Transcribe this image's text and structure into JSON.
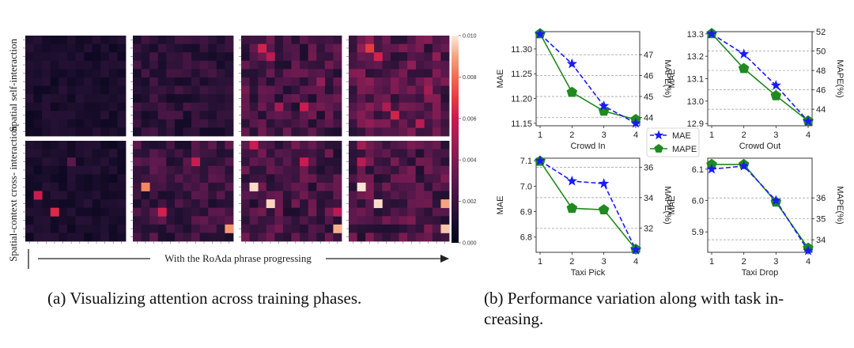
{
  "panel_a": {
    "row_labels": [
      "Spatial self-interaction",
      "Spatial-context cross- interaction"
    ],
    "progress_text": "With the RoAda phrase progressing",
    "colorbar": {
      "ticks": [
        "0.010",
        "0.008",
        "0.006",
        "0.004",
        "0.002",
        "0.000"
      ],
      "min": 0,
      "max": 0.01
    }
  },
  "captions": {
    "a_tag": "(a)",
    "a_text": "Visualizing attention across training phases.",
    "b_tag": "(b)",
    "b_text": "Performance variation along with task increasing.",
    "b_text_line1": "Performance variation along with task in-",
    "b_text_line2": "creasing."
  },
  "legend": {
    "mae": "MAE",
    "mape": "MAPE"
  },
  "colors": {
    "mae": "#1a1aff",
    "mape": "#1f8a1f"
  },
  "chart_data": [
    {
      "id": "crowd-in",
      "type": "line",
      "xlabel": "Crowd In",
      "ylabel": "MAE",
      "y2label": "MAPE(%)",
      "x": [
        1,
        2,
        3,
        4
      ],
      "series": [
        {
          "name": "MAE",
          "axis": "left",
          "values": [
            11.33,
            11.27,
            11.185,
            11.15
          ]
        },
        {
          "name": "MAPE",
          "axis": "right",
          "values": [
            48.0,
            45.2,
            44.3,
            43.9
          ]
        }
      ],
      "ylim": [
        11.145,
        11.335
      ],
      "yticks": [
        "11.15",
        "11.20",
        "11.25",
        "11.30"
      ],
      "y2lim": [
        43.6,
        48.1
      ],
      "y2ticks": [
        "44",
        "45",
        "46",
        "47"
      ]
    },
    {
      "id": "crowd-out",
      "type": "line",
      "xlabel": "Crowd Out",
      "ylabel": "MAE",
      "y2label": "MAPE(%)",
      "x": [
        1,
        2,
        3,
        4
      ],
      "series": [
        {
          "name": "MAE",
          "axis": "left",
          "values": [
            13.3,
            13.21,
            13.07,
            12.91
          ]
        },
        {
          "name": "MAPE",
          "axis": "right",
          "values": [
            51.8,
            48.2,
            45.4,
            42.8
          ]
        }
      ],
      "ylim": [
        12.89,
        13.31
      ],
      "yticks": [
        "12.9",
        "13.0",
        "13.1",
        "13.2",
        "13.3"
      ],
      "y2lim": [
        42.3,
        52.0
      ],
      "y2ticks": [
        "44",
        "46",
        "48",
        "50",
        "52"
      ]
    },
    {
      "id": "taxi-pick",
      "type": "line",
      "xlabel": "Taxi Pick",
      "ylabel": "MAE",
      "y2label": "MAPE(%)",
      "x": [
        1,
        2,
        3,
        4
      ],
      "series": [
        {
          "name": "MAE",
          "axis": "left",
          "values": [
            7.1,
            7.02,
            7.01,
            6.75
          ]
        },
        {
          "name": "MAPE",
          "axis": "right",
          "values": [
            36.4,
            33.3,
            33.2,
            30.6
          ]
        }
      ],
      "ylim": [
        6.74,
        7.11
      ],
      "yticks": [
        "6.8",
        "6.9",
        "7.0",
        "7.1"
      ],
      "y2lim": [
        30.4,
        36.6
      ],
      "y2ticks": [
        "32",
        "34",
        "36"
      ]
    },
    {
      "id": "taxi-drop",
      "type": "line",
      "xlabel": "Taxi Drop",
      "ylabel": "MAE",
      "y2label": "MAPE(%)",
      "x": [
        1,
        2,
        3,
        4
      ],
      "series": [
        {
          "name": "MAE",
          "axis": "left",
          "values": [
            6.1,
            6.11,
            6.0,
            5.84
          ]
        },
        {
          "name": "MAPE",
          "axis": "right",
          "values": [
            37.6,
            37.6,
            35.8,
            33.6
          ]
        }
      ],
      "ylim": [
        5.835,
        6.135
      ],
      "yticks": [
        "5.9",
        "6.0",
        "6.1"
      ],
      "y2lim": [
        33.4,
        37.9
      ],
      "y2ticks": [
        "34",
        "35",
        "36"
      ]
    }
  ]
}
